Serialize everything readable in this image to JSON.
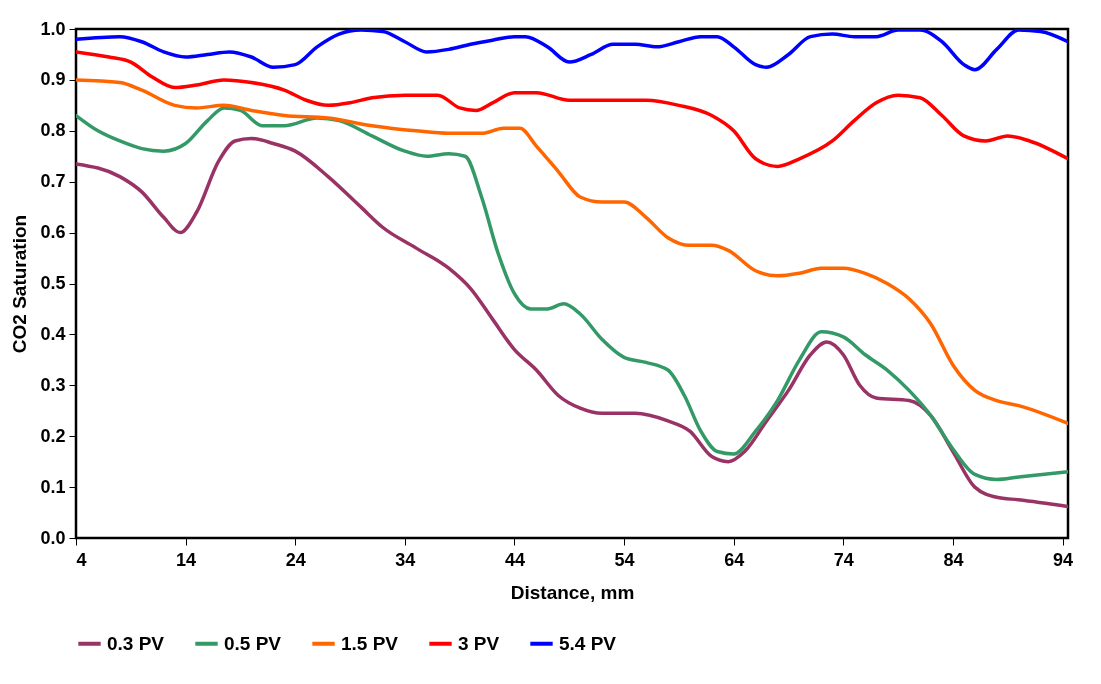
{
  "chart_data": {
    "type": "line",
    "xlabel": "Distance, mm",
    "ylabel": "CO2 Saturation",
    "xlim": [
      4,
      94.5
    ],
    "ylim": [
      0,
      1
    ],
    "xticks": [
      4,
      14,
      24,
      34,
      44,
      54,
      64,
      74,
      84,
      94
    ],
    "yticks": [
      {
        "value": 0,
        "label": "0.0"
      },
      {
        "value": 0.1,
        "label": "0.1"
      },
      {
        "value": 0.2,
        "label": "0.2"
      },
      {
        "value": 0.3,
        "label": "0.3"
      },
      {
        "value": 0.4,
        "label": "0.4"
      },
      {
        "value": 0.5,
        "label": "0.5"
      },
      {
        "value": 0.6,
        "label": "0.6"
      },
      {
        "value": 0.7,
        "label": "0.7"
      },
      {
        "value": 0.8,
        "label": "0.8"
      },
      {
        "value": 0.9,
        "label": "0.9"
      },
      {
        "value": 1,
        "label": "1.0"
      }
    ],
    "grid": false,
    "legend": "bottom",
    "line_style": "solid",
    "series": [
      {
        "name": "0.3 PV",
        "color": "#993366",
        "x": [
          4,
          8,
          10,
          12,
          13.5,
          15,
          17,
          18.5,
          20,
          22,
          24,
          27,
          30,
          32,
          35,
          38,
          40,
          42,
          44,
          46,
          48,
          50,
          52,
          55,
          58,
          60,
          62,
          63.5,
          65,
          67,
          69,
          71,
          72.5,
          74,
          75.5,
          77,
          80,
          82,
          84,
          86,
          88,
          90,
          94.5
        ],
        "values": [
          0.735,
          0.71,
          0.68,
          0.63,
          0.6,
          0.64,
          0.74,
          0.78,
          0.785,
          0.775,
          0.76,
          0.71,
          0.65,
          0.61,
          0.57,
          0.53,
          0.49,
          0.43,
          0.37,
          0.33,
          0.28,
          0.255,
          0.245,
          0.245,
          0.23,
          0.21,
          0.16,
          0.15,
          0.17,
          0.23,
          0.29,
          0.36,
          0.385,
          0.36,
          0.3,
          0.275,
          0.27,
          0.24,
          0.17,
          0.1,
          0.08,
          0.075,
          0.062
        ]
      },
      {
        "name": "0.5 PV",
        "color": "#339966",
        "x": [
          4,
          6,
          8,
          10,
          12,
          14,
          16,
          17.5,
          19,
          21,
          23,
          26,
          28,
          31,
          34,
          36,
          38,
          39.5,
          41,
          42.5,
          44,
          45.5,
          47,
          48.5,
          50,
          52,
          54,
          56,
          58,
          59.5,
          61,
          62.5,
          64,
          66,
          68,
          70,
          72,
          74,
          76,
          78,
          80,
          82,
          84,
          86,
          88,
          90,
          94.5
        ],
        "values": [
          0.83,
          0.8,
          0.78,
          0.765,
          0.76,
          0.775,
          0.82,
          0.845,
          0.84,
          0.81,
          0.81,
          0.825,
          0.82,
          0.79,
          0.76,
          0.75,
          0.755,
          0.75,
          0.67,
          0.56,
          0.48,
          0.45,
          0.45,
          0.46,
          0.44,
          0.39,
          0.355,
          0.345,
          0.33,
          0.28,
          0.21,
          0.17,
          0.165,
          0.21,
          0.27,
          0.35,
          0.405,
          0.395,
          0.36,
          0.33,
          0.29,
          0.24,
          0.175,
          0.125,
          0.115,
          0.12,
          0.13
        ]
      },
      {
        "name": "1.5 PV",
        "color": "#ff6600",
        "x": [
          4,
          8,
          10,
          13,
          15,
          17.5,
          20,
          23,
          27,
          31,
          35,
          38,
          41,
          43,
          44.5,
          46,
          48,
          50,
          52,
          54,
          56,
          58,
          60,
          62,
          63.5,
          66,
          68,
          70,
          72,
          74,
          76,
          78,
          80,
          82,
          84,
          86,
          88,
          90,
          94.5
        ],
        "values": [
          0.9,
          0.895,
          0.88,
          0.85,
          0.845,
          0.85,
          0.84,
          0.83,
          0.825,
          0.81,
          0.8,
          0.795,
          0.795,
          0.805,
          0.805,
          0.77,
          0.72,
          0.67,
          0.66,
          0.66,
          0.63,
          0.59,
          0.575,
          0.575,
          0.565,
          0.525,
          0.515,
          0.52,
          0.53,
          0.53,
          0.52,
          0.5,
          0.47,
          0.42,
          0.34,
          0.29,
          0.27,
          0.26,
          0.225
        ]
      },
      {
        "name": "3 PV",
        "color": "#ff0000",
        "x": [
          4,
          7,
          9,
          11,
          13,
          15,
          17.5,
          20,
          23,
          25,
          27,
          29,
          31,
          34,
          37,
          39,
          40.5,
          42,
          44,
          46,
          49,
          52,
          56,
          59,
          62,
          64,
          66,
          68,
          70,
          73,
          75,
          77,
          79,
          81,
          83,
          85,
          87,
          89,
          91,
          94.5
        ],
        "values": [
          0.955,
          0.945,
          0.935,
          0.905,
          0.885,
          0.89,
          0.9,
          0.895,
          0.88,
          0.86,
          0.85,
          0.855,
          0.865,
          0.87,
          0.87,
          0.845,
          0.84,
          0.855,
          0.875,
          0.875,
          0.86,
          0.86,
          0.86,
          0.85,
          0.83,
          0.8,
          0.745,
          0.73,
          0.745,
          0.78,
          0.82,
          0.855,
          0.87,
          0.865,
          0.83,
          0.79,
          0.78,
          0.79,
          0.78,
          0.745
        ]
      },
      {
        "name": "5.4 PV",
        "color": "#0000ff",
        "x": [
          4,
          8,
          10,
          12,
          14,
          16,
          18,
          20,
          22,
          24,
          26,
          28,
          30,
          32,
          34,
          36,
          38,
          40,
          42,
          44,
          45,
          47,
          49,
          51,
          53,
          55,
          57,
          59,
          61,
          62.5,
          64,
          66,
          67,
          69,
          71,
          73,
          75,
          77,
          79,
          81,
          83,
          85,
          86,
          88,
          90,
          92,
          94.5
        ],
        "values": [
          0.98,
          0.985,
          0.975,
          0.955,
          0.945,
          0.95,
          0.955,
          0.945,
          0.925,
          0.93,
          0.965,
          0.99,
          0.998,
          0.995,
          0.975,
          0.955,
          0.96,
          0.97,
          0.978,
          0.985,
          0.985,
          0.965,
          0.935,
          0.95,
          0.97,
          0.97,
          0.965,
          0.975,
          0.985,
          0.985,
          0.965,
          0.93,
          0.925,
          0.95,
          0.985,
          0.99,
          0.985,
          0.985,
          0.998,
          0.998,
          0.975,
          0.93,
          0.92,
          0.96,
          0.998,
          0.995,
          0.975
        ]
      }
    ]
  }
}
